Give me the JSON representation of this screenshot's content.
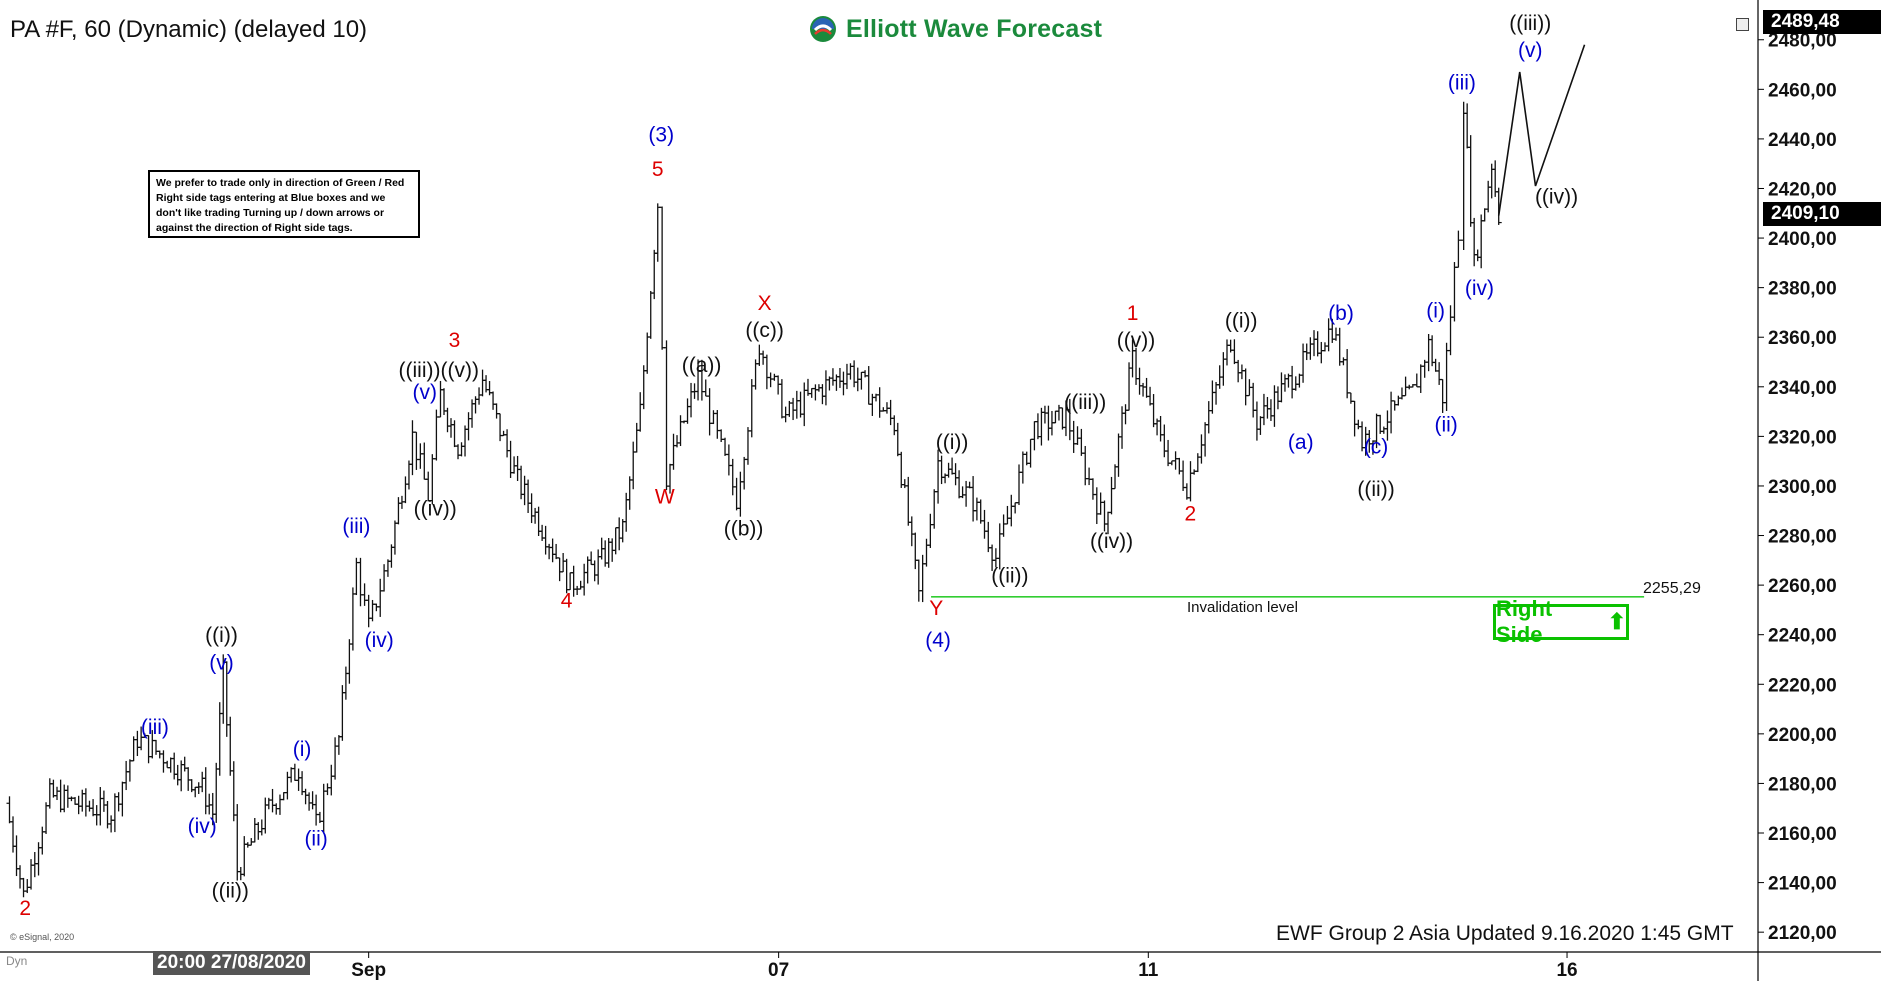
{
  "header": {
    "title": "PA #F, 60 (Dynamic) (delayed 10)"
  },
  "logo": {
    "text": "Elliott Wave Forecast"
  },
  "note": {
    "text": "We prefer to trade only in direction of Green / Red Right side tags entering at Blue boxes and we don't like trading Turning up / down arrows or against the direction of Right side tags."
  },
  "footer": {
    "text": "EWF Group 2 Asia Updated 9.16.2020 1:45 GMT"
  },
  "badge": {
    "label": "Right Side",
    "arrow": "⬆",
    "color": "#0ac100"
  },
  "invalidation": {
    "label": "Invalidation level",
    "value_label": "2255,29",
    "value": 2255.29,
    "color": "#32cd32"
  },
  "price_boxes": {
    "current": "2409,10",
    "top": "2489,48"
  },
  "time_axis": {
    "datebox": "20:00 27/08/2020",
    "dyn": "Dyn",
    "ticks": [
      {
        "label": "Sep",
        "t": 0.207
      },
      {
        "label": "07",
        "t": 0.441
      },
      {
        "label": "11",
        "t": 0.652
      },
      {
        "label": "16",
        "t": 0.891
      }
    ]
  },
  "copyright": "© eSignal, 2020",
  "colors": {
    "red": "#dd0000",
    "blue": "#0000cc",
    "black": "#111111",
    "green": "#1b8a3c"
  },
  "chart_data": {
    "type": "ohlc",
    "ylim": [
      2112,
      2492
    ],
    "price_ticks": [
      "2120,00",
      "2140,00",
      "2160,00",
      "2180,00",
      "2200,00",
      "2220,00",
      "2240,00",
      "2260,00",
      "2280,00",
      "2300,00",
      "2320,00",
      "2340,00",
      "2360,00",
      "2380,00",
      "2400,00",
      "2420,00",
      "2440,00",
      "2460,00",
      "2480,00"
    ],
    "price_tick_values": [
      2120,
      2140,
      2160,
      2180,
      2200,
      2220,
      2240,
      2260,
      2280,
      2300,
      2320,
      2340,
      2360,
      2380,
      2400,
      2420,
      2440,
      2460,
      2480
    ],
    "anchors": [
      {
        "t": 0.0,
        "p": 2172
      },
      {
        "t": 0.01,
        "p": 2135
      },
      {
        "t": 0.025,
        "p": 2175
      },
      {
        "t": 0.06,
        "p": 2168
      },
      {
        "t": 0.075,
        "p": 2198
      },
      {
        "t": 0.092,
        "p": 2190
      },
      {
        "t": 0.112,
        "p": 2178
      },
      {
        "t": 0.118,
        "p": 2168
      },
      {
        "t": 0.124,
        "p": 2224
      },
      {
        "t": 0.132,
        "p": 2145
      },
      {
        "t": 0.15,
        "p": 2170
      },
      {
        "t": 0.167,
        "p": 2186
      },
      {
        "t": 0.177,
        "p": 2163
      },
      {
        "t": 0.19,
        "p": 2198
      },
      {
        "t": 0.2,
        "p": 2268
      },
      {
        "t": 0.207,
        "p": 2243
      },
      {
        "t": 0.218,
        "p": 2270
      },
      {
        "t": 0.232,
        "p": 2320
      },
      {
        "t": 0.241,
        "p": 2296
      },
      {
        "t": 0.248,
        "p": 2337
      },
      {
        "t": 0.258,
        "p": 2316
      },
      {
        "t": 0.272,
        "p": 2343
      },
      {
        "t": 0.292,
        "p": 2302
      },
      {
        "t": 0.312,
        "p": 2275
      },
      {
        "t": 0.322,
        "p": 2260
      },
      {
        "t": 0.34,
        "p": 2270
      },
      {
        "t": 0.352,
        "p": 2283
      },
      {
        "t": 0.362,
        "p": 2330
      },
      {
        "t": 0.372,
        "p": 2414
      },
      {
        "t": 0.377,
        "p": 2304
      },
      {
        "t": 0.395,
        "p": 2344
      },
      {
        "t": 0.417,
        "p": 2295
      },
      {
        "t": 0.43,
        "p": 2357
      },
      {
        "t": 0.445,
        "p": 2328
      },
      {
        "t": 0.462,
        "p": 2338
      },
      {
        "t": 0.482,
        "p": 2347
      },
      {
        "t": 0.507,
        "p": 2325
      },
      {
        "t": 0.521,
        "p": 2256
      },
      {
        "t": 0.532,
        "p": 2310
      },
      {
        "t": 0.552,
        "p": 2294
      },
      {
        "t": 0.565,
        "p": 2271
      },
      {
        "t": 0.587,
        "p": 2324
      },
      {
        "t": 0.605,
        "p": 2328
      },
      {
        "t": 0.627,
        "p": 2285
      },
      {
        "t": 0.643,
        "p": 2351
      },
      {
        "t": 0.659,
        "p": 2318
      },
      {
        "t": 0.674,
        "p": 2300
      },
      {
        "t": 0.699,
        "p": 2359
      },
      {
        "t": 0.714,
        "p": 2326
      },
      {
        "t": 0.732,
        "p": 2342
      },
      {
        "t": 0.757,
        "p": 2364
      },
      {
        "t": 0.774,
        "p": 2318
      },
      {
        "t": 0.803,
        "p": 2338
      },
      {
        "t": 0.812,
        "p": 2357
      },
      {
        "t": 0.82,
        "p": 2336
      },
      {
        "t": 0.829,
        "p": 2403
      },
      {
        "t": 0.832,
        "p": 2455
      },
      {
        "t": 0.838,
        "p": 2389
      },
      {
        "t": 0.848,
        "p": 2430
      },
      {
        "t": 0.852,
        "p": 2409
      }
    ],
    "projection": [
      {
        "t": 0.852,
        "p": 2409
      },
      {
        "t": 0.864,
        "p": 2467
      },
      {
        "t": 0.873,
        "p": 2421
      },
      {
        "t": 0.901,
        "p": 2478
      }
    ],
    "labels": [
      {
        "text": "2",
        "color": "red",
        "t": 0.011,
        "p": 2127
      },
      {
        "text": "((i))",
        "color": "black",
        "t": 0.123,
        "p": 2237
      },
      {
        "text": "(v)",
        "color": "blue",
        "t": 0.123,
        "p": 2226
      },
      {
        "text": "(iii)",
        "color": "blue",
        "t": 0.085,
        "p": 2200
      },
      {
        "text": "(iv)",
        "color": "blue",
        "t": 0.112,
        "p": 2160
      },
      {
        "text": "((ii))",
        "color": "black",
        "t": 0.128,
        "p": 2134
      },
      {
        "text": "(i)",
        "color": "blue",
        "t": 0.169,
        "p": 2191
      },
      {
        "text": "(ii)",
        "color": "blue",
        "t": 0.177,
        "p": 2155
      },
      {
        "text": "(iii)",
        "color": "blue",
        "t": 0.2,
        "p": 2281
      },
      {
        "text": "(iv)",
        "color": "blue",
        "t": 0.213,
        "p": 2235
      },
      {
        "text": "3",
        "color": "red",
        "t": 0.256,
        "p": 2356
      },
      {
        "text": "((iii))((v))",
        "color": "black",
        "t": 0.247,
        "p": 2344
      },
      {
        "text": "(v)",
        "color": "blue",
        "t": 0.239,
        "p": 2335
      },
      {
        "text": "((iv))",
        "color": "black",
        "t": 0.245,
        "p": 2288
      },
      {
        "text": "4",
        "color": "red",
        "t": 0.32,
        "p": 2251
      },
      {
        "text": "(3)",
        "color": "blue",
        "t": 0.374,
        "p": 2439
      },
      {
        "text": "5",
        "color": "red",
        "t": 0.372,
        "p": 2425
      },
      {
        "text": "W",
        "color": "red",
        "t": 0.376,
        "p": 2293
      },
      {
        "text": "((a))",
        "color": "black",
        "t": 0.397,
        "p": 2346
      },
      {
        "text": "((b))",
        "color": "black",
        "t": 0.421,
        "p": 2280
      },
      {
        "text": "X",
        "color": "red",
        "t": 0.433,
        "p": 2371
      },
      {
        "text": "((c))",
        "color": "black",
        "t": 0.433,
        "p": 2360
      },
      {
        "text": "((i))",
        "color": "black",
        "t": 0.54,
        "p": 2315
      },
      {
        "text": "Y",
        "color": "red",
        "t": 0.531,
        "p": 2248
      },
      {
        "text": "(4)",
        "color": "blue",
        "t": 0.532,
        "p": 2235
      },
      {
        "text": "((ii))",
        "color": "black",
        "t": 0.573,
        "p": 2261
      },
      {
        "text": "((iii))",
        "color": "black",
        "t": 0.616,
        "p": 2331
      },
      {
        "text": "((iv))",
        "color": "black",
        "t": 0.631,
        "p": 2275
      },
      {
        "text": "1",
        "color": "red",
        "t": 0.643,
        "p": 2367
      },
      {
        "text": "((v))",
        "color": "black",
        "t": 0.645,
        "p": 2356
      },
      {
        "text": "2",
        "color": "red",
        "t": 0.676,
        "p": 2286
      },
      {
        "text": "((i))",
        "color": "black",
        "t": 0.705,
        "p": 2364
      },
      {
        "text": "(a)",
        "color": "blue",
        "t": 0.739,
        "p": 2315
      },
      {
        "text": "(b)",
        "color": "blue",
        "t": 0.762,
        "p": 2367
      },
      {
        "text": "(c)",
        "color": "blue",
        "t": 0.782,
        "p": 2313
      },
      {
        "text": "((ii))",
        "color": "black",
        "t": 0.782,
        "p": 2296
      },
      {
        "text": "(i)",
        "color": "blue",
        "t": 0.816,
        "p": 2368
      },
      {
        "text": "(ii)",
        "color": "blue",
        "t": 0.822,
        "p": 2322
      },
      {
        "text": "(iii)",
        "color": "blue",
        "t": 0.831,
        "p": 2460
      },
      {
        "text": "(iv)",
        "color": "blue",
        "t": 0.841,
        "p": 2377
      },
      {
        "text": "((iii))",
        "color": "black",
        "t": 0.87,
        "p": 2484
      },
      {
        "text": "(v)",
        "color": "blue",
        "t": 0.87,
        "p": 2473
      },
      {
        "text": "((iv))",
        "color": "black",
        "t": 0.885,
        "p": 2414
      }
    ]
  }
}
